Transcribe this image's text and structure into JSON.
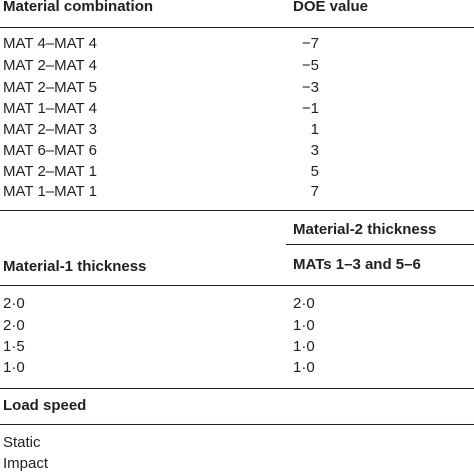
{
  "table1": {
    "headers": {
      "material_combination": "Material combination",
      "doe_value": "DOE value"
    },
    "rows": [
      {
        "combination": "MAT 4–MAT 4",
        "doe": "−7"
      },
      {
        "combination": "MAT 2–MAT 4",
        "doe": "−5"
      },
      {
        "combination": "MAT 2–MAT 5",
        "doe": "−3"
      },
      {
        "combination": "MAT 1–MAT 4",
        "doe": "−1"
      },
      {
        "combination": "MAT 2–MAT 3",
        "doe": "1"
      },
      {
        "combination": "MAT 6–MAT 6",
        "doe": "3"
      },
      {
        "combination": "MAT 2–MAT 1",
        "doe": "5"
      },
      {
        "combination": "MAT 1–MAT 1",
        "doe": "7"
      }
    ]
  },
  "table2": {
    "headers": {
      "material1_thickness": "Material-1 thickness",
      "material2_thickness": "Material-2 thickness",
      "mats_subheader": "MATs 1–3 and 5–6"
    },
    "rows": [
      {
        "m1": "2·0",
        "m2": "2·0"
      },
      {
        "m1": "2·0",
        "m2": "1·0"
      },
      {
        "m1": "1·5",
        "m2": "1·0"
      },
      {
        "m1": "1·0",
        "m2": "1·0"
      }
    ]
  },
  "table3": {
    "headers": {
      "load_speed": "Load speed"
    },
    "rows": [
      {
        "speed": "Static"
      },
      {
        "speed": "Impact"
      }
    ]
  }
}
